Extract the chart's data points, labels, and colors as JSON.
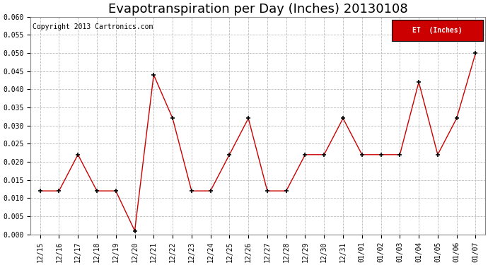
{
  "title": "Evapotranspiration per Day (Inches) 20130108",
  "copyright_text": "Copyright 2013 Cartronics.com",
  "legend_label": "ET  (Inches)",
  "x_labels": [
    "12/15",
    "12/16",
    "12/17",
    "12/18",
    "12/19",
    "12/20",
    "12/21",
    "12/22",
    "12/23",
    "12/24",
    "12/25",
    "12/26",
    "12/27",
    "12/28",
    "12/29",
    "12/30",
    "12/31",
    "01/01",
    "01/02",
    "01/03",
    "01/04",
    "01/05",
    "01/06",
    "01/07"
  ],
  "y_values": [
    0.012,
    0.012,
    0.022,
    0.012,
    0.012,
    0.001,
    0.044,
    0.032,
    0.012,
    0.012,
    0.022,
    0.032,
    0.012,
    0.012,
    0.022,
    0.022,
    0.032,
    0.022,
    0.022,
    0.022,
    0.042,
    0.022,
    0.032,
    0.05
  ],
  "line_color": "#cc0000",
  "marker_color": "#000000",
  "legend_bg_color": "#cc0000",
  "legend_text_color": "#ffffff",
  "grid_color": "#bbbbbb",
  "ylim": [
    0.0,
    0.06
  ],
  "ytick_step": 0.005,
  "background_color": "#ffffff",
  "title_fontsize": 13,
  "copyright_fontsize": 7,
  "tick_fontsize": 7
}
